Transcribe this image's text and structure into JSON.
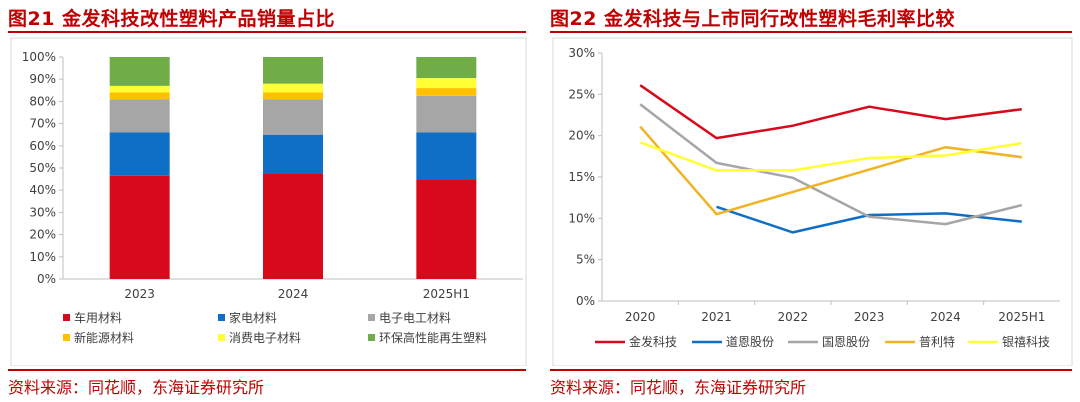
{
  "left": {
    "title": "图21  金发科技改性塑料产品销量占比",
    "source": "资料来源：同花顺，东海证券研究所"
  },
  "right": {
    "title": "图22  金发科技与上市同行改性塑料毛利率比较",
    "source": "资料来源：同花顺，东海证券研究所"
  },
  "chart_data": [
    {
      "type": "bar",
      "stacked": true,
      "categories": [
        "2023",
        "2024",
        "2025H1"
      ],
      "ylim": [
        0,
        100
      ],
      "yticks": [
        "0%",
        "10%",
        "20%",
        "30%",
        "40%",
        "50%",
        "60%",
        "70%",
        "80%",
        "90%",
        "100%"
      ],
      "grid": false,
      "legend_position": "bottom",
      "series": [
        {
          "name": "车用材料",
          "color": "#d9091c",
          "values": [
            46.5,
            47.5,
            45
          ]
        },
        {
          "name": "家电材料",
          "color": "#0f6fc6",
          "values": [
            19.5,
            17.5,
            21
          ]
        },
        {
          "name": "电子电工材料",
          "color": "#a6a6a6",
          "values": [
            15,
            16,
            16.5
          ]
        },
        {
          "name": "新能源材料",
          "color": "#ffc000",
          "values": [
            3,
            3,
            3.5
          ]
        },
        {
          "name": "消费电子材料",
          "color": "#ffff33",
          "values": [
            3,
            4,
            4.5
          ]
        },
        {
          "name": "环保高性能再生塑料",
          "color": "#70ad47",
          "values": [
            13,
            12,
            9.5
          ]
        }
      ]
    },
    {
      "type": "line",
      "categories": [
        "2020",
        "2021",
        "2022",
        "2023",
        "2024",
        "2025H1"
      ],
      "ylim": [
        0,
        30
      ],
      "yticks": [
        "0%",
        "5%",
        "10%",
        "15%",
        "20%",
        "25%",
        "30%"
      ],
      "grid": false,
      "legend_position": "bottom",
      "series": [
        {
          "name": "金发科技",
          "color": "#d9091c",
          "values": [
            26.1,
            19.7,
            21.2,
            23.5,
            22.0,
            23.2
          ]
        },
        {
          "name": "道恩股份",
          "color": "#0f6fc6",
          "values": [
            null,
            11.4,
            8.3,
            10.4,
            10.6,
            9.6
          ]
        },
        {
          "name": "国恩股份",
          "color": "#a6a6a6",
          "values": [
            23.8,
            16.7,
            14.9,
            10.2,
            9.3,
            11.6
          ]
        },
        {
          "name": "普利特",
          "color": "#f0b323",
          "values": [
            21.1,
            10.5,
            13.2,
            15.9,
            18.6,
            17.4
          ]
        },
        {
          "name": "银禧科技",
          "color": "#ffff33",
          "values": [
            19.2,
            15.8,
            15.8,
            17.3,
            17.6,
            19.1
          ]
        }
      ]
    }
  ]
}
